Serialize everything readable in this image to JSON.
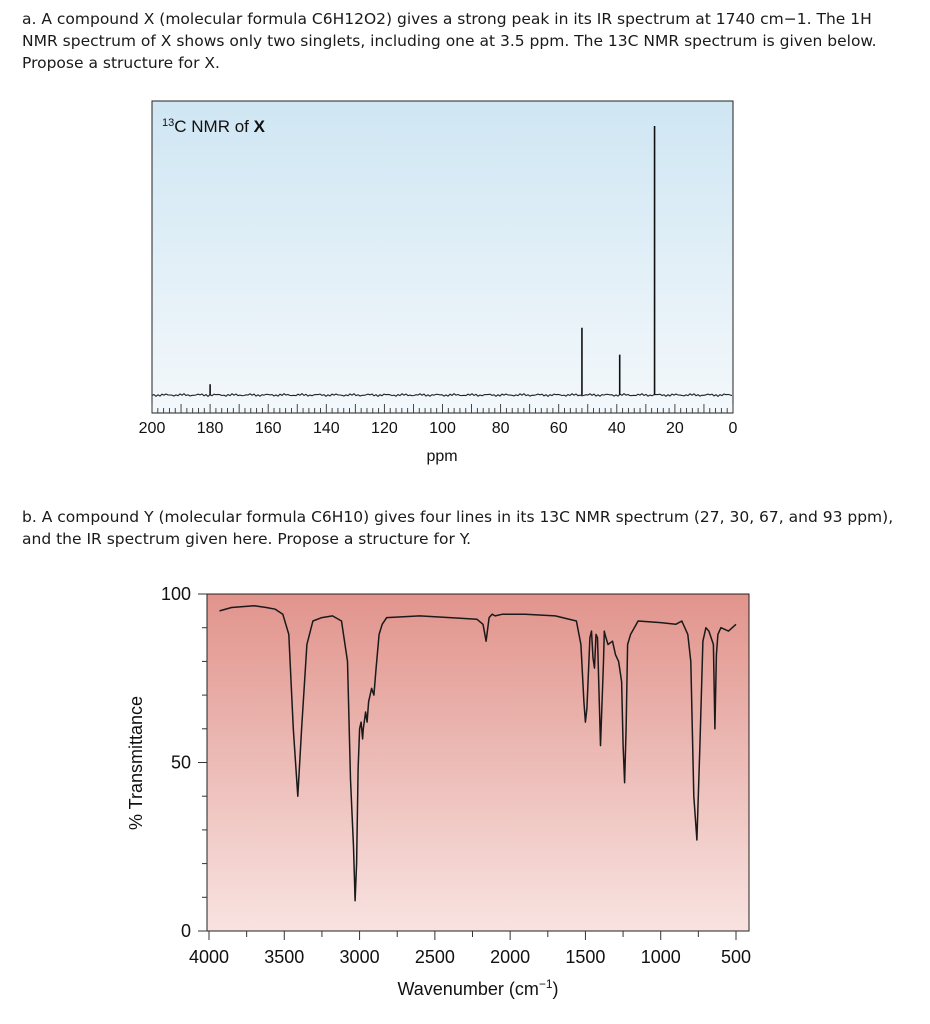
{
  "question_a": {
    "line1": "a. A compound X (molecular formula C6H12O2) gives a strong peak in its IR spectrum at 1740 cm−1. The 1H",
    "line2": "NMR spectrum of X shows only two singlets, including one at 3.5 ppm. The 13C NMR spectrum is given below.",
    "line3": "Propose a structure for X."
  },
  "question_b": {
    "line1": "b. A compound Y (molecular formula C6H10) gives four lines in its 13C NMR spectrum (27, 30, 67, and 93 ppm),",
    "line2": "and the IR spectrum given here. Propose a structure for Y."
  },
  "chart_data": [
    {
      "type": "line",
      "title_sup": "13",
      "title_main": "C NMR of ",
      "title_bold": "X",
      "xlabel": "ppm",
      "xlim": [
        200,
        0
      ],
      "x_reversed": true,
      "xticks": [
        200,
        180,
        160,
        140,
        120,
        100,
        80,
        60,
        40,
        20,
        0
      ],
      "ylim": [
        0,
        1
      ],
      "background": [
        "#cfe6f3",
        "#f3f8fb"
      ],
      "peaks": [
        {
          "x": 180,
          "y": 0.04
        },
        {
          "x": 52,
          "y": 0.25
        },
        {
          "x": 39,
          "y": 0.15
        },
        {
          "x": 27,
          "y": 1.0
        }
      ]
    },
    {
      "type": "line",
      "xlabel": "Wavenumber (cm",
      "xlabel_sup": "−1",
      "xlabel_end": ")",
      "ylabel": "% Transmittance",
      "xlim": [
        4000,
        500
      ],
      "x_reversed": true,
      "ylim": [
        0,
        100
      ],
      "xticks": [
        4000,
        3500,
        3000,
        2500,
        2000,
        1500,
        1000,
        500
      ],
      "yticks": [
        100,
        50,
        0
      ],
      "background": [
        "#e1948c",
        "#f8e3e1"
      ],
      "series": [
        {
          "x": [
            3930,
            3850,
            3700,
            3620,
            3560,
            3510,
            3470,
            3440,
            3410,
            3385,
            3350,
            3310,
            3250,
            3180,
            3120,
            3080,
            3060,
            3040,
            3030,
            3020,
            3010,
            3000,
            2990,
            2980,
            2975,
            2960,
            2950,
            2940,
            2930,
            2920,
            2905,
            2890,
            2870,
            2850,
            2820,
            2600,
            2400,
            2220,
            2180,
            2160,
            2140,
            2120,
            2100,
            2050,
            1900,
            1700,
            1560,
            1530,
            1510,
            1500,
            1490,
            1470,
            1460,
            1450,
            1440,
            1430,
            1420,
            1400,
            1380,
            1375,
            1370,
            1350,
            1320,
            1300,
            1280,
            1260,
            1250,
            1240,
            1230,
            1220,
            1200,
            1150,
            1000,
            900,
            860,
            820,
            800,
            790,
            780,
            760,
            740,
            720,
            700,
            680,
            650,
            640,
            630,
            620,
            600,
            550,
            500
          ],
          "y": [
            95,
            96,
            96.5,
            96,
            95.5,
            94,
            88,
            60,
            40,
            60,
            85,
            92,
            93,
            93.5,
            92,
            80,
            45,
            25,
            9,
            20,
            48,
            60,
            62,
            57,
            60,
            65,
            62,
            68,
            70,
            72,
            70,
            78,
            88,
            91,
            93,
            93.5,
            93,
            92.5,
            91,
            86,
            93,
            94,
            93.5,
            94,
            94,
            93.5,
            92,
            85,
            68,
            62,
            66,
            87,
            89,
            81,
            78,
            88,
            87,
            55,
            80,
            89,
            88,
            85,
            86,
            82,
            80,
            74,
            55,
            44,
            60,
            85,
            88,
            92,
            91.5,
            91,
            92,
            88,
            80,
            60,
            40,
            27,
            55,
            86,
            90,
            89,
            85,
            60,
            82,
            88,
            90,
            89,
            91
          ]
        }
      ]
    }
  ]
}
